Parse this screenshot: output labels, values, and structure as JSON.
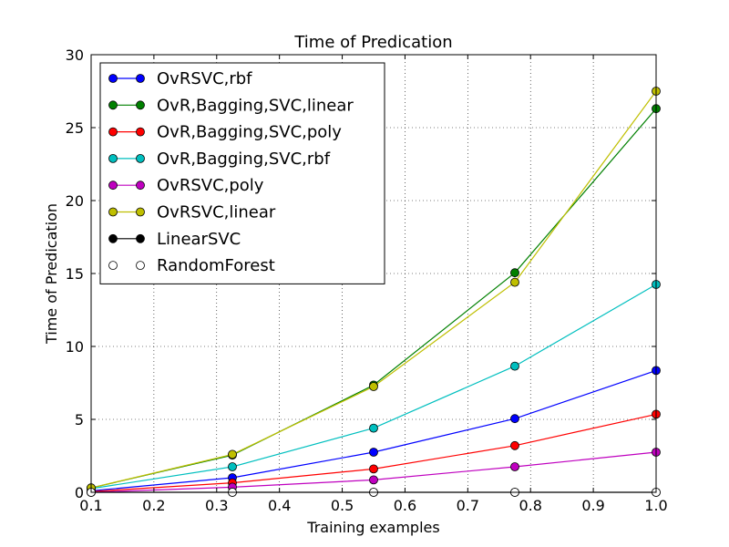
{
  "chart_data": {
    "type": "line",
    "title": "Time of Predication",
    "xlabel": "Training examples",
    "ylabel": "Time of Predication",
    "xlim": [
      0.1,
      1.0
    ],
    "ylim": [
      0,
      30
    ],
    "xticks": [
      "0.1",
      "0.2",
      "0.3",
      "0.4",
      "0.5",
      "0.6",
      "0.7",
      "0.8",
      "0.9",
      "1.0"
    ],
    "yticks": [
      "0",
      "5",
      "10",
      "15",
      "20",
      "25",
      "30"
    ],
    "grid": true,
    "legend_position": "top-left",
    "x": [
      0.1,
      0.325,
      0.55,
      0.775,
      1.0
    ],
    "series": [
      {
        "name": "OvRSVC,rbf",
        "color": "#0000ff",
        "marker": "filled",
        "values": [
          0.1,
          1.0,
          2.75,
          5.05,
          8.35
        ]
      },
      {
        "name": "OvR,Bagging,SVC,linear",
        "color": "#008000",
        "marker": "filled",
        "values": [
          0.3,
          2.55,
          7.35,
          15.05,
          26.3
        ]
      },
      {
        "name": "OvR,Bagging,SVC,poly",
        "color": "#ff0000",
        "marker": "filled",
        "values": [
          0.05,
          0.65,
          1.6,
          3.2,
          5.35
        ]
      },
      {
        "name": "OvR,Bagging,SVC,rbf",
        "color": "#00bfbf",
        "marker": "filled",
        "values": [
          0.25,
          1.75,
          4.4,
          8.65,
          14.25
        ]
      },
      {
        "name": "OvRSVC,poly",
        "color": "#bf00bf",
        "marker": "filled",
        "values": [
          0.0,
          0.35,
          0.85,
          1.75,
          2.75
        ]
      },
      {
        "name": "OvRSVC,linear",
        "color": "#bfbf00",
        "marker": "filled",
        "values": [
          0.3,
          2.6,
          7.25,
          14.4,
          27.5
        ]
      },
      {
        "name": "LinearSVC",
        "color": "#000000",
        "marker": "filled",
        "values": [
          0.0,
          0.0,
          0.0,
          0.0,
          0.0
        ]
      },
      {
        "name": "RandomForest",
        "color": "#ffffff",
        "marker": "hollow",
        "values": [
          0.0,
          0.0,
          0.0,
          0.0,
          0.0
        ]
      }
    ]
  }
}
